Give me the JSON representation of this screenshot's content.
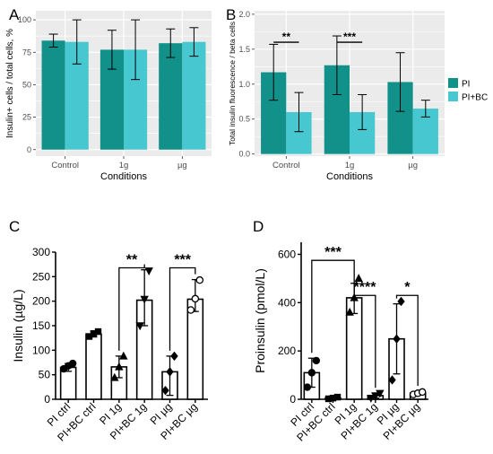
{
  "colors": {
    "pi": "#12918a",
    "pibc": "#47c7cf",
    "panel_bg": "#ebebeb",
    "grid": "#ffffff",
    "ink": "#000000"
  },
  "chart_data": [
    {
      "panel": "A",
      "type": "bar",
      "xlabel": "Conditions",
      "ylabel": "Insulin+ cells / total cells, %",
      "categories": [
        "Control",
        "1g",
        "µg"
      ],
      "ylim": [
        -5,
        107
      ],
      "yticks": [
        0,
        25,
        50,
        75,
        100
      ],
      "grid": true,
      "series": [
        {
          "name": "PI",
          "values": [
            84,
            77,
            82
          ],
          "err": [
            5,
            15,
            11
          ]
        },
        {
          "name": "PI+BC",
          "values": [
            83,
            77,
            83
          ],
          "err": [
            17,
            23,
            11
          ]
        }
      ]
    },
    {
      "panel": "B",
      "type": "bar",
      "xlabel": "Conditions",
      "ylabel": "Total insulin fluorescence / beta cells",
      "categories": [
        "Control",
        "1g",
        "µg"
      ],
      "ylim": [
        -0.03,
        2.05
      ],
      "yticks": [
        "0.0",
        "0.5",
        "1.0",
        "1.5",
        "2.0"
      ],
      "grid": true,
      "legend": {
        "placement": "right"
      },
      "series": [
        {
          "name": "PI",
          "values": [
            1.17,
            1.27,
            1.03
          ],
          "err": [
            0.4,
            0.42,
            0.42
          ]
        },
        {
          "name": "PI+BC",
          "values": [
            0.6,
            0.6,
            0.65
          ],
          "err": [
            0.28,
            0.25,
            0.12
          ]
        }
      ],
      "annotations": [
        {
          "label": "**",
          "from": 0,
          "to": 1,
          "y": 1.6
        },
        {
          "label": "***",
          "from": 2,
          "to": 3,
          "y": 1.6
        }
      ]
    },
    {
      "panel": "C",
      "type": "bar",
      "ylabel": "Insulin (µg/L)",
      "categories": [
        "PI ctrl",
        "PI+BC ctrl",
        "PI 1g",
        "PI+BC 1g",
        "PI µg",
        "PI+BC µg"
      ],
      "ylim": [
        0,
        300
      ],
      "yticks": [
        0,
        50,
        100,
        150,
        200,
        250,
        300
      ],
      "grid": false,
      "values": [
        65,
        133,
        66,
        202,
        56,
        204
      ],
      "err_low": [
        8,
        6,
        22,
        52,
        48,
        25
      ],
      "err_high": [
        8,
        6,
        22,
        62,
        32,
        40
      ],
      "markers": [
        "circle",
        "square",
        "triangle",
        "triangle-down",
        "diamond",
        "circle-open"
      ],
      "points": [
        [
          62,
          68,
          73
        ],
        [
          128,
          134,
          138
        ],
        [
          44,
          66,
          88
        ],
        [
          150,
          204,
          262
        ],
        [
          18,
          56,
          88
        ],
        [
          182,
          205,
          243
        ]
      ],
      "annotations": [
        {
          "label": "**",
          "from": 2,
          "to": 3,
          "y": 268
        },
        {
          "label": "***",
          "from": 4,
          "to": 5,
          "y": 268
        }
      ]
    },
    {
      "panel": "D",
      "type": "bar",
      "ylabel": "Proinsulin (pmol/L)",
      "categories": [
        "PI ctrl",
        "PI+BC ctrl",
        "PI 1g",
        "PI+BC 1g",
        "PI µg",
        "PI+BC µg"
      ],
      "ylim": [
        0,
        650
      ],
      "yticks": [
        0,
        200,
        400,
        600
      ],
      "grid": false,
      "values": [
        110,
        5,
        420,
        15,
        250,
        25
      ],
      "err_low": [
        60,
        3,
        65,
        10,
        145,
        8
      ],
      "err_high": [
        60,
        3,
        60,
        10,
        145,
        8
      ],
      "markers": [
        "circle",
        "square",
        "triangle",
        "triangle-down",
        "diamond",
        "circle-open"
      ],
      "points": [
        [
          50,
          110,
          160
        ],
        [
          2,
          5,
          9
        ],
        [
          360,
          420,
          500
        ],
        [
          5,
          15,
          25
        ],
        [
          80,
          250,
          405
        ],
        [
          20,
          25,
          30
        ]
      ],
      "annotations": [
        {
          "label": "***",
          "from": 0,
          "to": 2,
          "y": 575
        },
        {
          "label": "****",
          "from": 2,
          "to": 3,
          "y": 430
        },
        {
          "label": "*",
          "from": 4,
          "to": 5,
          "y": 430
        }
      ]
    }
  ],
  "panel_labels": [
    "A",
    "B",
    "C",
    "D"
  ]
}
